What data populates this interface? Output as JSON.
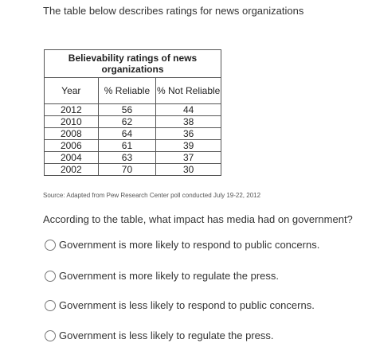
{
  "intro_text": "The table below describes ratings for news organizations",
  "table": {
    "caption": "Believability ratings of news organizations",
    "headers": [
      "Year",
      "% Reliable",
      "% Not Reliable"
    ],
    "rows": [
      [
        "2012",
        "56",
        "44"
      ],
      [
        "2010",
        "62",
        "38"
      ],
      [
        "2008",
        "64",
        "36"
      ],
      [
        "2006",
        "61",
        "39"
      ],
      [
        "2004",
        "63",
        "37"
      ],
      [
        "2002",
        "70",
        "30"
      ]
    ]
  },
  "source_text": "Source: Adapted from Pew Research Center poll conducted July 19-22, 2012",
  "question": "According to the table, what impact has media had on government?",
  "options": [
    "Government is more likely to respond to public concerns.",
    "Government is more likely to regulate the press.",
    "Government is less likely to respond to public concerns.",
    "Government is less likely to regulate the press."
  ]
}
